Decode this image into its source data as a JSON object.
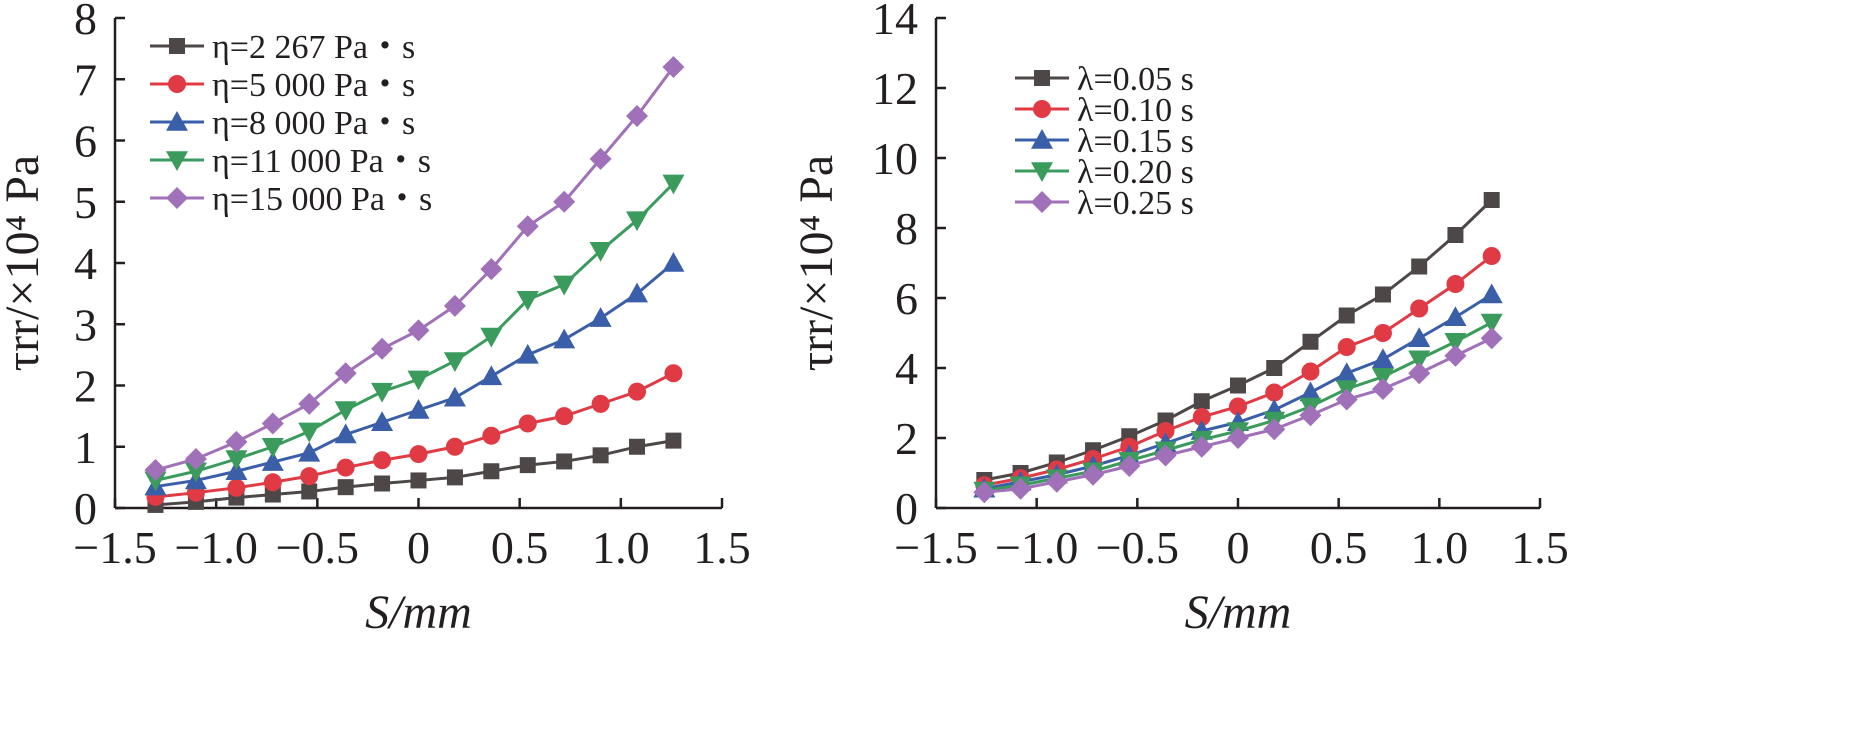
{
  "chart_data": [
    {
      "type": "line",
      "title": "",
      "xlabel": "S/mm",
      "ylabel": "τrr/×10⁴ Pa",
      "xlim": [
        -1.5,
        1.5
      ],
      "ylim": [
        0,
        8
      ],
      "x_ticks": [
        "−1.5",
        "−1.0",
        "−0.5",
        "0",
        "0.5",
        "1.0",
        "1.5"
      ],
      "y_ticks": [
        "0",
        "1",
        "2",
        "3",
        "4",
        "5",
        "6",
        "7",
        "8"
      ],
      "legend_position": "top-left",
      "x": [
        -1.3,
        -1.1,
        -0.9,
        -0.72,
        -0.54,
        -0.36,
        -0.18,
        0,
        0.18,
        0.36,
        0.54,
        0.72,
        0.9,
        1.08,
        1.26
      ],
      "series": [
        {
          "name": "η=2 267 Pa・s",
          "color": "#4d4747",
          "marker": "square",
          "values": [
            0.05,
            0.1,
            0.17,
            0.22,
            0.27,
            0.34,
            0.4,
            0.45,
            0.5,
            0.6,
            0.7,
            0.76,
            0.86,
            1.0,
            1.1
          ]
        },
        {
          "name": "η=5 000 Pa・s",
          "color": "#e03a45",
          "marker": "circle",
          "values": [
            0.18,
            0.25,
            0.33,
            0.42,
            0.52,
            0.66,
            0.78,
            0.88,
            1.0,
            1.18,
            1.38,
            1.5,
            1.7,
            1.9,
            2.2
          ]
        },
        {
          "name": "η=8 000 Pa・s",
          "color": "#3a5fa8",
          "marker": "triangle-up",
          "values": [
            0.35,
            0.45,
            0.6,
            0.75,
            0.9,
            1.2,
            1.4,
            1.6,
            1.8,
            2.15,
            2.5,
            2.75,
            3.1,
            3.5,
            4.0
          ]
        },
        {
          "name": "η=11 000 Pa・s",
          "color": "#3a9b5c",
          "marker": "triangle-down",
          "values": [
            0.45,
            0.6,
            0.8,
            1.0,
            1.25,
            1.6,
            1.9,
            2.1,
            2.4,
            2.8,
            3.4,
            3.65,
            4.2,
            4.7,
            5.3
          ]
        },
        {
          "name": "η=15 000 Pa・s",
          "color": "#a070b8",
          "marker": "diamond",
          "values": [
            0.62,
            0.8,
            1.08,
            1.38,
            1.7,
            2.2,
            2.6,
            2.9,
            3.3,
            3.9,
            4.6,
            5.0,
            5.7,
            6.4,
            7.2
          ]
        }
      ]
    },
    {
      "type": "line",
      "title": "",
      "xlabel": "S/mm",
      "ylabel": "τrr/×10⁴ Pa",
      "xlim": [
        -1.5,
        1.5
      ],
      "ylim": [
        0,
        14
      ],
      "x_ticks": [
        "−1.5",
        "−1.0",
        "−0.5",
        "0",
        "0.5",
        "1.0",
        "1.5"
      ],
      "y_ticks": [
        "0",
        "2",
        "4",
        "6",
        "8",
        "10",
        "12",
        "14"
      ],
      "legend_position": "top-left",
      "x": [
        -1.26,
        -1.08,
        -0.9,
        -0.72,
        -0.54,
        -0.36,
        -0.18,
        0,
        0.18,
        0.36,
        0.54,
        0.72,
        0.9,
        1.08,
        1.26
      ],
      "series": [
        {
          "name": "λ=0.05 s",
          "color": "#4d4747",
          "marker": "square",
          "values": [
            0.8,
            1.0,
            1.3,
            1.65,
            2.05,
            2.5,
            3.05,
            3.5,
            4.0,
            4.75,
            5.5,
            6.1,
            6.9,
            7.8,
            8.8
          ]
        },
        {
          "name": "λ=0.10 s",
          "color": "#e03a45",
          "marker": "circle",
          "values": [
            0.65,
            0.85,
            1.1,
            1.4,
            1.75,
            2.2,
            2.6,
            2.9,
            3.3,
            3.9,
            4.6,
            5.0,
            5.7,
            6.4,
            7.2
          ]
        },
        {
          "name": "λ=0.15 s",
          "color": "#3a5fa8",
          "marker": "triangle-up",
          "values": [
            0.55,
            0.75,
            0.95,
            1.2,
            1.5,
            1.85,
            2.2,
            2.45,
            2.8,
            3.3,
            3.85,
            4.25,
            4.85,
            5.45,
            6.1
          ]
        },
        {
          "name": "λ=0.20 s",
          "color": "#3a9b5c",
          "marker": "triangle-down",
          "values": [
            0.5,
            0.65,
            0.85,
            1.05,
            1.35,
            1.65,
            1.95,
            2.2,
            2.5,
            2.9,
            3.4,
            3.75,
            4.25,
            4.75,
            5.3
          ]
        },
        {
          "name": "λ=0.25 s",
          "color": "#a070b8",
          "marker": "diamond",
          "values": [
            0.45,
            0.55,
            0.75,
            0.95,
            1.2,
            1.5,
            1.75,
            2.0,
            2.25,
            2.65,
            3.1,
            3.4,
            3.85,
            4.35,
            4.85
          ]
        }
      ]
    }
  ]
}
